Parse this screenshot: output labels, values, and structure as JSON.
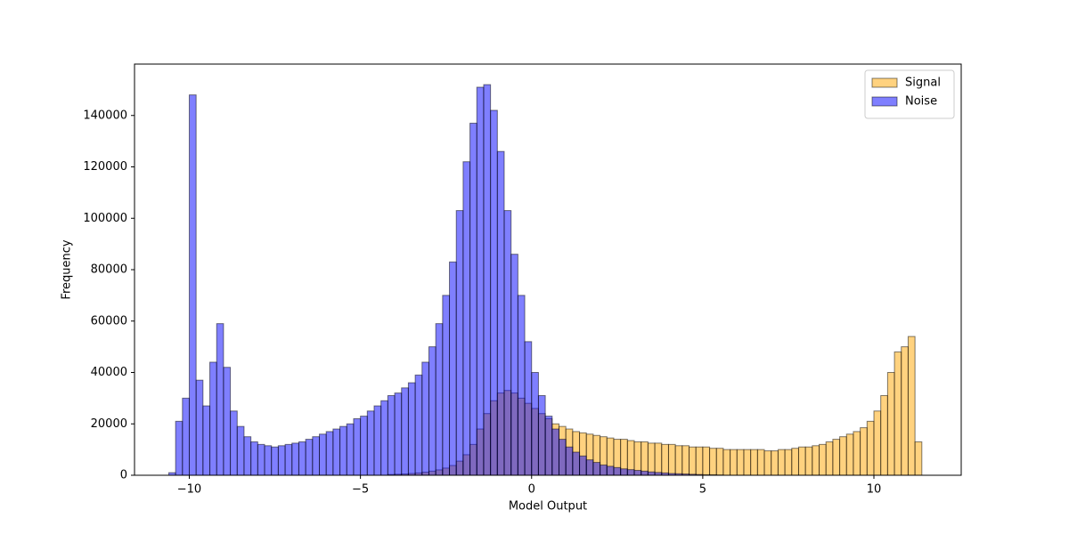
{
  "chart_data": {
    "type": "histogram",
    "x_label": "Model Output",
    "y_label": "Frequency",
    "bins": [
      -10.6,
      -10.4,
      -10.2,
      -10.0,
      -9.8,
      -9.6,
      -9.4,
      -9.2,
      -9.0,
      -8.8,
      -8.6,
      -8.4,
      -8.2,
      -8.0,
      -7.8,
      -7.6,
      -7.4,
      -7.2,
      -7.0,
      -6.8,
      -6.6,
      -6.4,
      -6.2,
      -6.0,
      -5.8,
      -5.6,
      -5.4,
      -5.2,
      -5.0,
      -4.8,
      -4.6,
      -4.4,
      -4.2,
      -4.0,
      -3.8,
      -3.6,
      -3.4,
      -3.2,
      -3.0,
      -2.8,
      -2.6,
      -2.4,
      -2.2,
      -2.0,
      -1.8,
      -1.6,
      -1.4,
      -1.2,
      -1.0,
      -0.8,
      -0.6,
      -0.4,
      -0.2,
      0.0,
      0.2,
      0.4,
      0.6,
      0.8,
      1.0,
      1.2,
      1.4,
      1.6,
      1.8,
      2.0,
      2.2,
      2.4,
      2.6,
      2.8,
      3.0,
      3.2,
      3.4,
      3.6,
      3.8,
      4.0,
      4.2,
      4.4,
      4.6,
      4.8,
      5.0,
      5.2,
      5.4,
      5.6,
      5.8,
      6.0,
      6.2,
      6.4,
      6.6,
      6.8,
      7.0,
      7.2,
      7.4,
      7.6,
      7.8,
      8.0,
      8.2,
      8.4,
      8.6,
      8.8,
      9.0,
      9.2,
      9.4,
      9.6,
      9.8,
      10.0,
      10.2,
      10.4,
      10.6,
      10.8,
      11.0,
      11.2,
      11.4,
      11.6
    ],
    "series": [
      {
        "name": "Signal",
        "color": "#ffa500",
        "values": [
          0,
          0,
          0,
          0,
          0,
          0,
          0,
          0,
          0,
          0,
          0,
          0,
          0,
          0,
          0,
          0,
          0,
          0,
          0,
          0,
          0,
          0,
          0,
          0,
          0,
          0,
          0,
          0,
          0,
          0,
          0,
          0,
          300,
          400,
          500,
          700,
          900,
          1200,
          1600,
          2100,
          2800,
          3800,
          5500,
          8000,
          12000,
          18000,
          24000,
          29000,
          32000,
          33000,
          32000,
          30000,
          28000,
          26000,
          24000,
          22000,
          20000,
          19000,
          18000,
          17000,
          16500,
          16000,
          15500,
          15000,
          14500,
          14000,
          14000,
          13500,
          13000,
          13000,
          12500,
          12500,
          12000,
          12000,
          11500,
          11500,
          11000,
          11000,
          11000,
          10500,
          10500,
          10000,
          10000,
          10000,
          10000,
          10000,
          10000,
          9500,
          9500,
          10000,
          10000,
          10500,
          11000,
          11000,
          11500,
          12000,
          13000,
          14000,
          15000,
          16000,
          17000,
          18500,
          21000,
          25000,
          31000,
          40000,
          48000,
          50000,
          54000,
          13000,
          0
        ]
      },
      {
        "name": "Noise",
        "color": "#0000ff",
        "values": [
          1000,
          21000,
          30000,
          148000,
          37000,
          27000,
          44000,
          59000,
          42000,
          25000,
          19000,
          15000,
          13000,
          12000,
          11500,
          11000,
          11500,
          12000,
          12500,
          13000,
          14000,
          15000,
          16000,
          17000,
          18000,
          19000,
          20000,
          22000,
          23000,
          25000,
          27000,
          29000,
          31000,
          32000,
          34000,
          36000,
          39000,
          44000,
          50000,
          59000,
          70000,
          83000,
          103000,
          122000,
          137000,
          151000,
          152000,
          142000,
          126000,
          103000,
          86000,
          70000,
          52000,
          40000,
          31000,
          23000,
          18000,
          14000,
          11000,
          9000,
          7500,
          6000,
          5000,
          4000,
          3500,
          3000,
          2500,
          2200,
          1900,
          1600,
          1300,
          1100,
          900,
          700,
          600,
          500,
          400,
          300,
          200,
          200,
          100,
          0,
          0,
          0,
          0,
          0,
          0,
          0,
          0,
          0,
          0,
          0,
          0,
          0,
          0,
          0,
          0,
          0,
          0,
          0,
          0,
          0,
          0,
          0,
          0,
          0,
          0,
          0,
          0,
          0,
          0
        ]
      }
    ],
    "xlim": [
      -11.6,
      12.55
    ],
    "ylim": [
      0,
      160000
    ],
    "xticks": [
      {
        "value": -10,
        "label": "−10"
      },
      {
        "value": -5,
        "label": "−5"
      },
      0,
      5,
      10
    ],
    "yticks": [
      0,
      20000,
      40000,
      60000,
      80000,
      100000,
      120000,
      140000
    ],
    "legend": "upper right",
    "alpha": 0.5
  }
}
